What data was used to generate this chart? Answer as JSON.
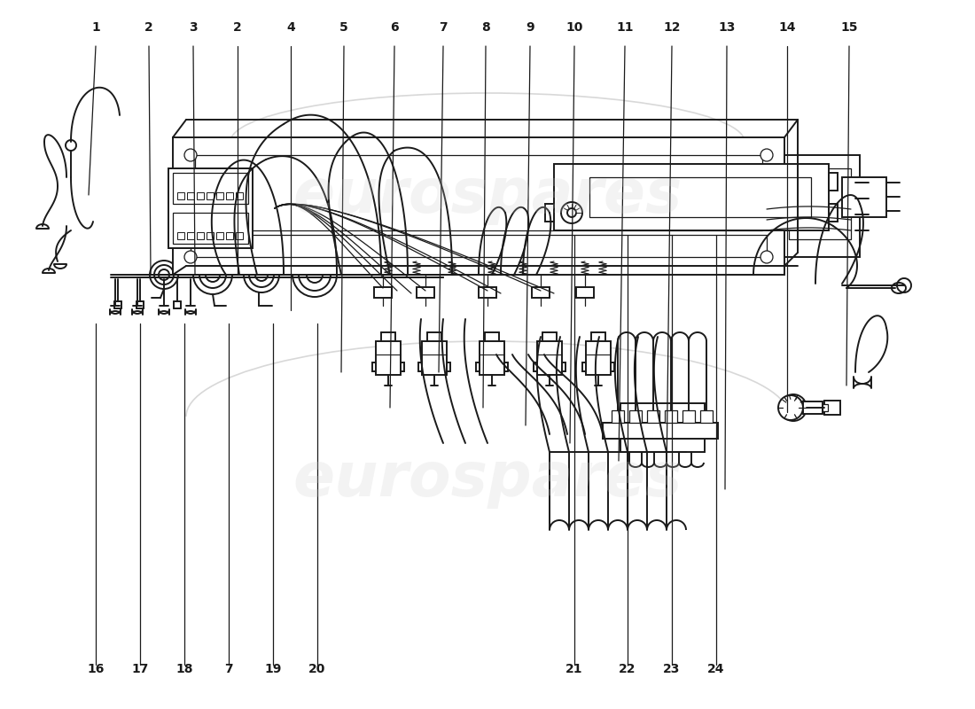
{
  "background_color": "#ffffff",
  "line_color": "#1a1a1a",
  "watermark_text": "eurospares",
  "watermark_color": "#cccccc",
  "top_labels": [
    [
      108,
      "1"
    ],
    [
      168,
      "2"
    ],
    [
      218,
      "3"
    ],
    [
      268,
      "2"
    ],
    [
      328,
      "4"
    ],
    [
      388,
      "5"
    ],
    [
      445,
      "6"
    ],
    [
      500,
      "7"
    ],
    [
      548,
      "8"
    ],
    [
      598,
      "9"
    ],
    [
      648,
      "10"
    ],
    [
      705,
      "11"
    ],
    [
      758,
      "12"
    ],
    [
      820,
      "13"
    ],
    [
      888,
      "14"
    ],
    [
      958,
      "15"
    ]
  ],
  "bottom_labels": [
    [
      108,
      "16"
    ],
    [
      158,
      "17"
    ],
    [
      208,
      "18"
    ],
    [
      258,
      "7"
    ],
    [
      308,
      "19"
    ],
    [
      358,
      "20"
    ],
    [
      648,
      "21"
    ],
    [
      708,
      "22"
    ],
    [
      758,
      "23"
    ],
    [
      808,
      "24"
    ]
  ]
}
